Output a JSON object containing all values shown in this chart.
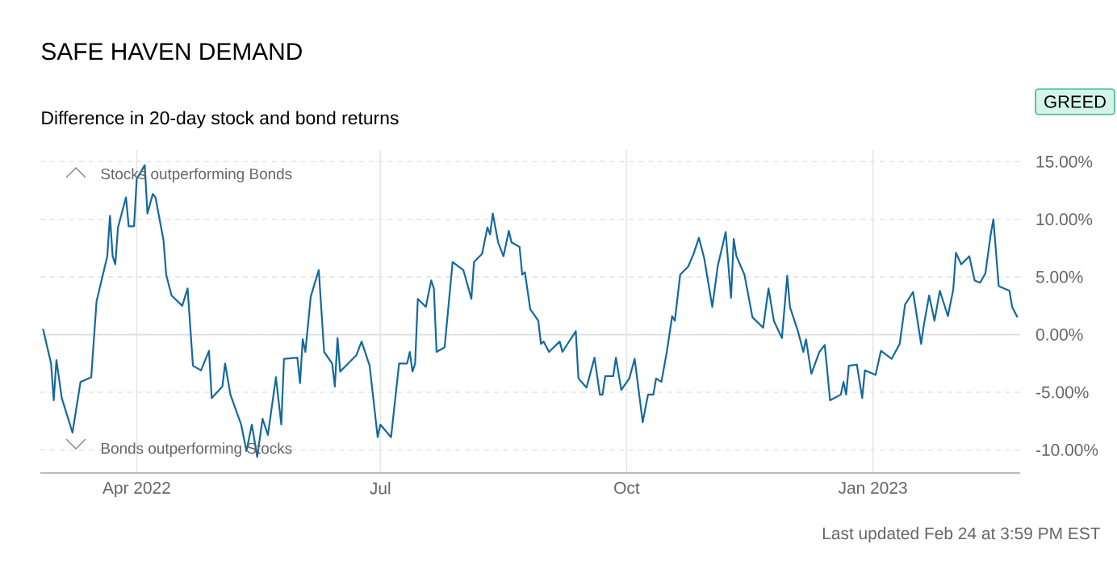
{
  "chart_data": {
    "type": "line",
    "title": "SAFE HAVEN DEMAND",
    "subtitle": "Difference in 20-day stock and bond returns",
    "annotations": [
      "Stocks outperforming Bonds",
      "Bonds outperforming Stocks",
      "GREED",
      "Last updated Feb 24 at 3:59 PM EST"
    ],
    "x": [
      "2022-02-25",
      "2022-02-28",
      "2022-03-01",
      "2022-03-02",
      "2022-03-04",
      "2022-03-08",
      "2022-03-11",
      "2022-03-15",
      "2022-03-17",
      "2022-03-21",
      "2022-03-22",
      "2022-03-23",
      "2022-03-24",
      "2022-03-25",
      "2022-03-28",
      "2022-03-29",
      "2022-03-31",
      "2022-04-01",
      "2022-04-04",
      "2022-04-05",
      "2022-04-07",
      "2022-04-08",
      "2022-04-11",
      "2022-04-12",
      "2022-04-14",
      "2022-04-18",
      "2022-04-20",
      "2022-04-22",
      "2022-04-25",
      "2022-04-28",
      "2022-04-29",
      "2022-05-03",
      "2022-05-04",
      "2022-05-06",
      "2022-05-10",
      "2022-05-12",
      "2022-05-14",
      "2022-05-16",
      "2022-05-18",
      "2022-05-20",
      "2022-05-23",
      "2022-05-25",
      "2022-05-26",
      "2022-05-31",
      "2022-06-01",
      "2022-06-02",
      "2022-06-03",
      "2022-06-05",
      "2022-06-08",
      "2022-06-10",
      "2022-06-13",
      "2022-06-14",
      "2022-06-15",
      "2022-06-16",
      "2022-06-22",
      "2022-06-24",
      "2022-06-27",
      "2022-06-30",
      "2022-07-01",
      "2022-07-05",
      "2022-07-08",
      "2022-07-11",
      "2022-07-12",
      "2022-07-13",
      "2022-07-14",
      "2022-07-15",
      "2022-07-18",
      "2022-07-20",
      "2022-07-21",
      "2022-07-22",
      "2022-07-25",
      "2022-07-28",
      "2022-08-01",
      "2022-08-04",
      "2022-08-05",
      "2022-08-08",
      "2022-08-10",
      "2022-08-11",
      "2022-08-12",
      "2022-08-14",
      "2022-08-16",
      "2022-08-18",
      "2022-08-19",
      "2022-08-22",
      "2022-08-23",
      "2022-08-24",
      "2022-08-26",
      "2022-08-29",
      "2022-08-30",
      "2022-08-31",
      "2022-09-02",
      "2022-09-06",
      "2022-09-07",
      "2022-09-12",
      "2022-09-13",
      "2022-09-16",
      "2022-09-19",
      "2022-09-21",
      "2022-09-22",
      "2022-09-23",
      "2022-09-26",
      "2022-09-27",
      "2022-09-29",
      "2022-10-02",
      "2022-10-04",
      "2022-10-07",
      "2022-10-09",
      "2022-10-11",
      "2022-10-12",
      "2022-10-14",
      "2022-10-16",
      "2022-10-18",
      "2022-10-19",
      "2022-10-21",
      "2022-10-24",
      "2022-10-26",
      "2022-10-28",
      "2022-10-30",
      "2022-11-02",
      "2022-11-04",
      "2022-11-07",
      "2022-11-09",
      "2022-11-10",
      "2022-11-11",
      "2022-11-14",
      "2022-11-17",
      "2022-11-21",
      "2022-11-23",
      "2022-11-25",
      "2022-11-28",
      "2022-11-30",
      "2022-12-01",
      "2022-12-04",
      "2022-12-06",
      "2022-12-07",
      "2022-12-09",
      "2022-12-12",
      "2022-12-14",
      "2022-12-16",
      "2022-12-20",
      "2022-12-21",
      "2022-12-22",
      "2022-12-23",
      "2022-12-26",
      "2022-12-28",
      "2022-12-29",
      "2023-01-02",
      "2023-01-04",
      "2023-01-08",
      "2023-01-11",
      "2023-01-13",
      "2023-01-16",
      "2023-01-19",
      "2023-01-20",
      "2023-01-22",
      "2023-01-24",
      "2023-01-26",
      "2023-01-29",
      "2023-01-31",
      "2023-02-01",
      "2023-02-03",
      "2023-02-06",
      "2023-02-08",
      "2023-02-10",
      "2023-02-12",
      "2023-02-14",
      "2023-02-15",
      "2023-02-17",
      "2023-02-21",
      "2023-02-22",
      "2023-02-24"
    ],
    "series": [
      {
        "color": "#13699e",
        "line_style": "solid",
        "values": [
          0.5,
          -2.5,
          -5.7,
          -2.2,
          -5.5,
          -8.5,
          -4.1,
          -3.7,
          2.9,
          6.8,
          10.3,
          6.8,
          6.1,
          9.3,
          11.9,
          9.4,
          9.4,
          13.5,
          14.7,
          10.5,
          12.2,
          11.9,
          8.2,
          5.2,
          3.4,
          2.5,
          4.0,
          -2.7,
          -3.1,
          -1.4,
          -5.5,
          -4.5,
          -2.5,
          -5.2,
          -7.8,
          -10.1,
          -7.8,
          -10.6,
          -7.3,
          -8.7,
          -3.7,
          -7.8,
          -2.1,
          -2.0,
          -4.2,
          -0.4,
          -1.5,
          3.3,
          5.6,
          -1.5,
          -2.5,
          -4.5,
          -0.3,
          -3.2,
          -1.8,
          -0.6,
          -2.7,
          -8.9,
          -7.8,
          -8.9,
          -2.5,
          -2.5,
          -1.5,
          -3.2,
          -2.5,
          3.1,
          2.4,
          4.7,
          4.0,
          -1.5,
          -1.1,
          6.3,
          5.6,
          3.1,
          6.3,
          7.0,
          9.3,
          8.7,
          10.5,
          8.0,
          6.8,
          9.0,
          8.0,
          7.6,
          5.2,
          5.4,
          2.2,
          1.2,
          -0.8,
          -0.6,
          -1.5,
          -0.6,
          -1.5,
          0.3,
          -3.8,
          -4.6,
          -2.0,
          -5.2,
          -5.2,
          -3.6,
          -3.6,
          -2.0,
          -4.8,
          -3.8,
          -2.1,
          -7.6,
          -5.2,
          -5.2,
          -3.8,
          -4.1,
          -1.5,
          1.6,
          1.2,
          5.2,
          5.9,
          7.0,
          8.4,
          6.6,
          2.4,
          5.9,
          8.9,
          3.2,
          8.3,
          6.8,
          5.2,
          1.5,
          0.6,
          4.0,
          1.2,
          -0.3,
          5.1,
          2.4,
          0.3,
          -1.5,
          -0.4,
          -3.4,
          -1.5,
          -0.9,
          -5.7,
          -5.2,
          -4.1,
          -5.2,
          -2.7,
          -2.6,
          -5.5,
          -3.1,
          -3.5,
          -1.4,
          -2.1,
          -0.8,
          2.6,
          3.7,
          -0.8,
          0.8,
          3.4,
          1.2,
          3.8,
          1.6,
          3.9,
          7.1,
          6.1,
          6.8,
          4.7,
          4.5,
          5.3,
          8.7,
          10.0,
          4.2,
          3.8,
          2.4,
          1.5
        ]
      }
    ],
    "xlim": [
      "2022-02-24",
      "2023-02-25"
    ],
    "xticks": [
      {
        "value": "2022-04-01",
        "label": "Apr 2022"
      },
      {
        "value": "2022-07-01",
        "label": "Jul"
      },
      {
        "value": "2022-10-01",
        "label": "Oct"
      },
      {
        "value": "2023-01-01",
        "label": "Jan 2023"
      }
    ],
    "ylim": [
      -12,
      16
    ],
    "yticks": [
      {
        "value": -10,
        "label": "-10.00%"
      },
      {
        "value": -5,
        "label": "-5.00%"
      },
      {
        "value": 0,
        "label": "0.00%"
      },
      {
        "value": 5,
        "label": "5.00%"
      },
      {
        "value": 10,
        "label": "10.00%"
      },
      {
        "value": 15,
        "label": "15.00%"
      }
    ],
    "ref_lines": [
      {
        "axis": "y",
        "value": 0
      }
    ],
    "grid": true
  }
}
